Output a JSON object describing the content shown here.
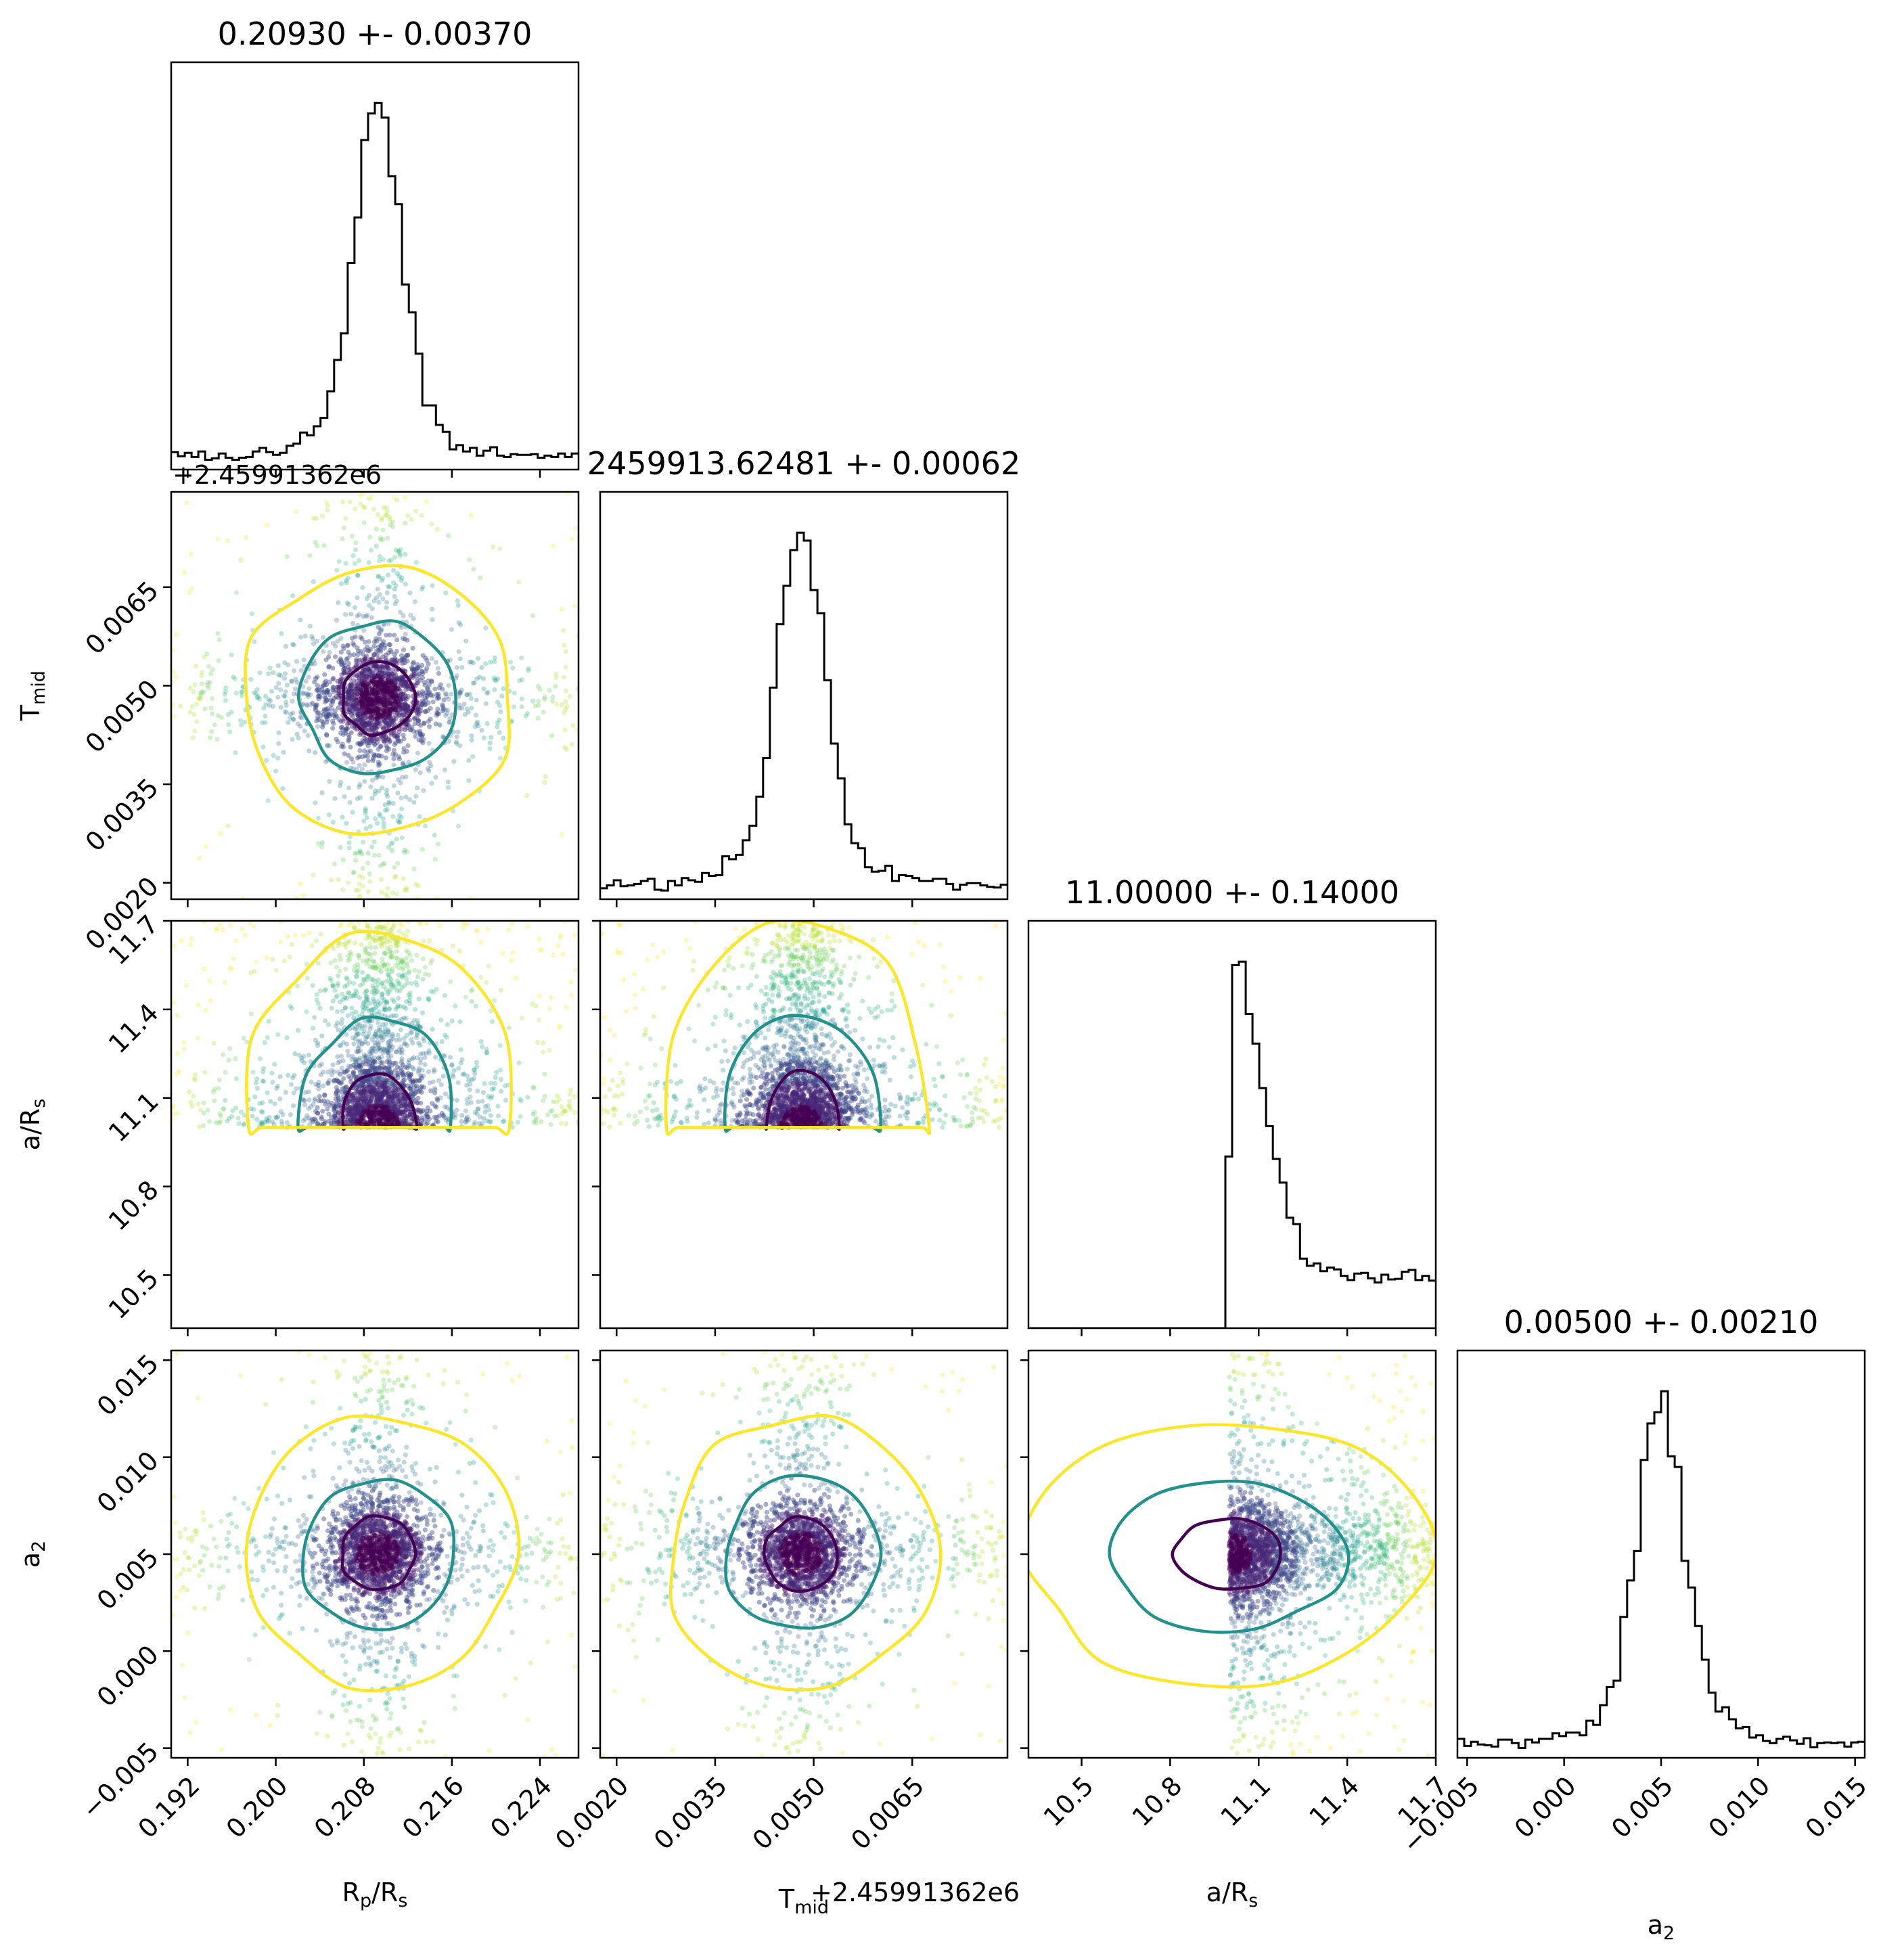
{
  "chart_data": {
    "type": "scatter",
    "subtype": "corner-plot",
    "parameters": [
      {
        "label": "R_p/R_s",
        "label_main": "R",
        "label_sub1": "p",
        "label_mid": "/R",
        "label_sub2": "s",
        "title": "0.20930 +- 0.00370",
        "median": 0.2093,
        "sigma": 0.0037,
        "range": [
          0.1905,
          0.2275
        ],
        "ticks": [
          "0.192",
          "0.200",
          "0.208",
          "0.216",
          "0.224"
        ],
        "tick_values": [
          0.192,
          0.2,
          0.208,
          0.216,
          0.224
        ],
        "offset_label": ""
      },
      {
        "label": "T_mid",
        "label_main": "T",
        "label_sub1": "mid",
        "title": "2459913.62481 +- 0.00062",
        "median": 0.00481,
        "sigma": 0.00062,
        "range": [
          0.00175,
          0.00795
        ],
        "ticks": [
          "0.0020",
          "0.0035",
          "0.0050",
          "0.0065"
        ],
        "tick_values": [
          0.002,
          0.0035,
          0.005,
          0.0065
        ],
        "offset_label": "+2.45991362e6"
      },
      {
        "label": "a/R_s",
        "label_main": "a/R",
        "label_sub1": "s",
        "title": "11.00000 +- 0.14000",
        "median": 11.0,
        "sigma": 0.14,
        "lower_bound": 11.0,
        "range": [
          10.32,
          11.7
        ],
        "ticks": [
          "10.5",
          "10.8",
          "11.1",
          "11.4",
          "11.7"
        ],
        "tick_values": [
          10.5,
          10.8,
          11.1,
          11.4,
          11.7
        ],
        "offset_label": ""
      },
      {
        "label": "a_2",
        "label_main": "a",
        "label_sub1": "2",
        "title": "0.00500 +- 0.00210",
        "median": 0.005,
        "sigma": 0.0021,
        "range": [
          -0.0055,
          0.0155
        ],
        "ticks": [
          "−0.005",
          "0.000",
          "0.005",
          "0.010",
          "0.015"
        ],
        "tick_values": [
          -0.005,
          0.0,
          0.005,
          0.01,
          0.015
        ],
        "offset_label": ""
      }
    ],
    "point_colormap": "viridis",
    "contour_levels": [
      "1-sigma",
      "2-sigma",
      "3-sigma"
    ],
    "colors": {
      "contour_inner": "#440154",
      "contour_middle": "#21918c",
      "contour_outer": "#fde725",
      "histogram": "#000000"
    },
    "grid": false,
    "legend": "none"
  }
}
